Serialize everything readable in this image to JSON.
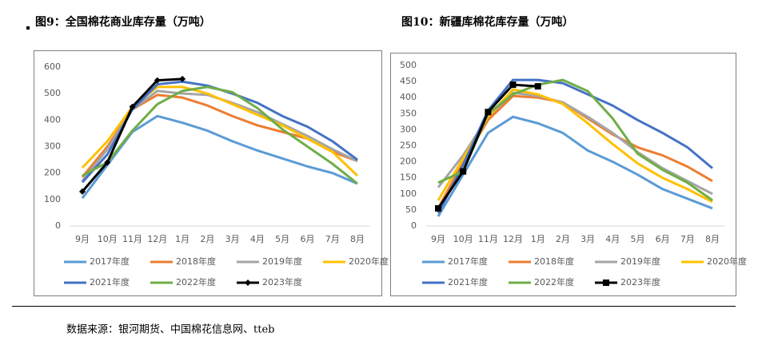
{
  "chart_data": [
    {
      "type": "line",
      "title": "图9：全国棉花商业库存量（万吨）",
      "categories": [
        "9月",
        "10月",
        "11月",
        "12月",
        "1月",
        "2月",
        "3月",
        "4月",
        "5月",
        "6月",
        "7月",
        "8月"
      ],
      "ylim": [
        0,
        600
      ],
      "yticks": [
        0,
        100,
        200,
        300,
        400,
        500,
        600
      ],
      "series": [
        {
          "name": "2017年度",
          "color": "#5b9bd5",
          "values": [
            105,
            230,
            355,
            415,
            390,
            360,
            320,
            285,
            255,
            225,
            200,
            160
          ]
        },
        {
          "name": "2018年度",
          "color": "#ed7d31",
          "values": [
            185,
            300,
            440,
            495,
            485,
            455,
            415,
            380,
            355,
            330,
            280,
            245
          ]
        },
        {
          "name": "2019年度",
          "color": "#a5a5a5",
          "values": [
            170,
            290,
            440,
            510,
            500,
            495,
            465,
            430,
            385,
            340,
            290,
            245
          ]
        },
        {
          "name": "2020年度",
          "color": "#ffc000",
          "values": [
            220,
            320,
            450,
            525,
            525,
            500,
            460,
            420,
            380,
            330,
            280,
            190
          ]
        },
        {
          "name": "2021年度",
          "color": "#4472c4",
          "values": [
            165,
            270,
            440,
            535,
            545,
            530,
            500,
            465,
            415,
            375,
            320,
            250
          ]
        },
        {
          "name": "2022年度",
          "color": "#70ad47",
          "values": [
            190,
            240,
            360,
            460,
            510,
            525,
            505,
            445,
            365,
            300,
            235,
            160
          ]
        },
        {
          "name": "2023年度",
          "color": "#000000",
          "marker": "diamond",
          "values": [
            130,
            240,
            450,
            550,
            555,
            null,
            null,
            null,
            null,
            null,
            null,
            null
          ]
        }
      ]
    },
    {
      "type": "line",
      "title": "图10：新疆库棉花库存量（万吨）",
      "categories": [
        "9月",
        "10月",
        "11月",
        "12月",
        "1月",
        "2月",
        "3月",
        "4月",
        "5月",
        "6月",
        "7月",
        "8月"
      ],
      "ylim": [
        0,
        500
      ],
      "yticks": [
        0,
        50,
        100,
        150,
        200,
        250,
        300,
        350,
        400,
        450,
        500
      ],
      "series": [
        {
          "name": "2017年度",
          "color": "#5b9bd5",
          "values": [
            30,
            160,
            290,
            340,
            320,
            290,
            235,
            200,
            160,
            115,
            85,
            55
          ]
        },
        {
          "name": "2018年度",
          "color": "#ed7d31",
          "values": [
            55,
            200,
            330,
            405,
            400,
            385,
            335,
            285,
            245,
            220,
            185,
            140
          ]
        },
        {
          "name": "2019年度",
          "color": "#a5a5a5",
          "values": [
            120,
            220,
            340,
            415,
            405,
            385,
            340,
            290,
            230,
            180,
            140,
            100
          ]
        },
        {
          "name": "2020年度",
          "color": "#ffc000",
          "values": [
            80,
            210,
            340,
            425,
            410,
            380,
            320,
            255,
            195,
            150,
            115,
            75
          ]
        },
        {
          "name": "2021年度",
          "color": "#4472c4",
          "values": [
            40,
            190,
            360,
            455,
            455,
            445,
            410,
            375,
            330,
            290,
            245,
            180
          ]
        },
        {
          "name": "2022年度",
          "color": "#70ad47",
          "values": [
            135,
            170,
            350,
            410,
            440,
            455,
            420,
            335,
            225,
            175,
            135,
            80
          ]
        },
        {
          "name": "2023年度",
          "color": "#000000",
          "marker": "square",
          "values": [
            55,
            170,
            355,
            440,
            435,
            null,
            null,
            null,
            null,
            null,
            null,
            null
          ]
        }
      ]
    }
  ],
  "source": "数据来源：银河期货、中国棉花信息网、tteb"
}
